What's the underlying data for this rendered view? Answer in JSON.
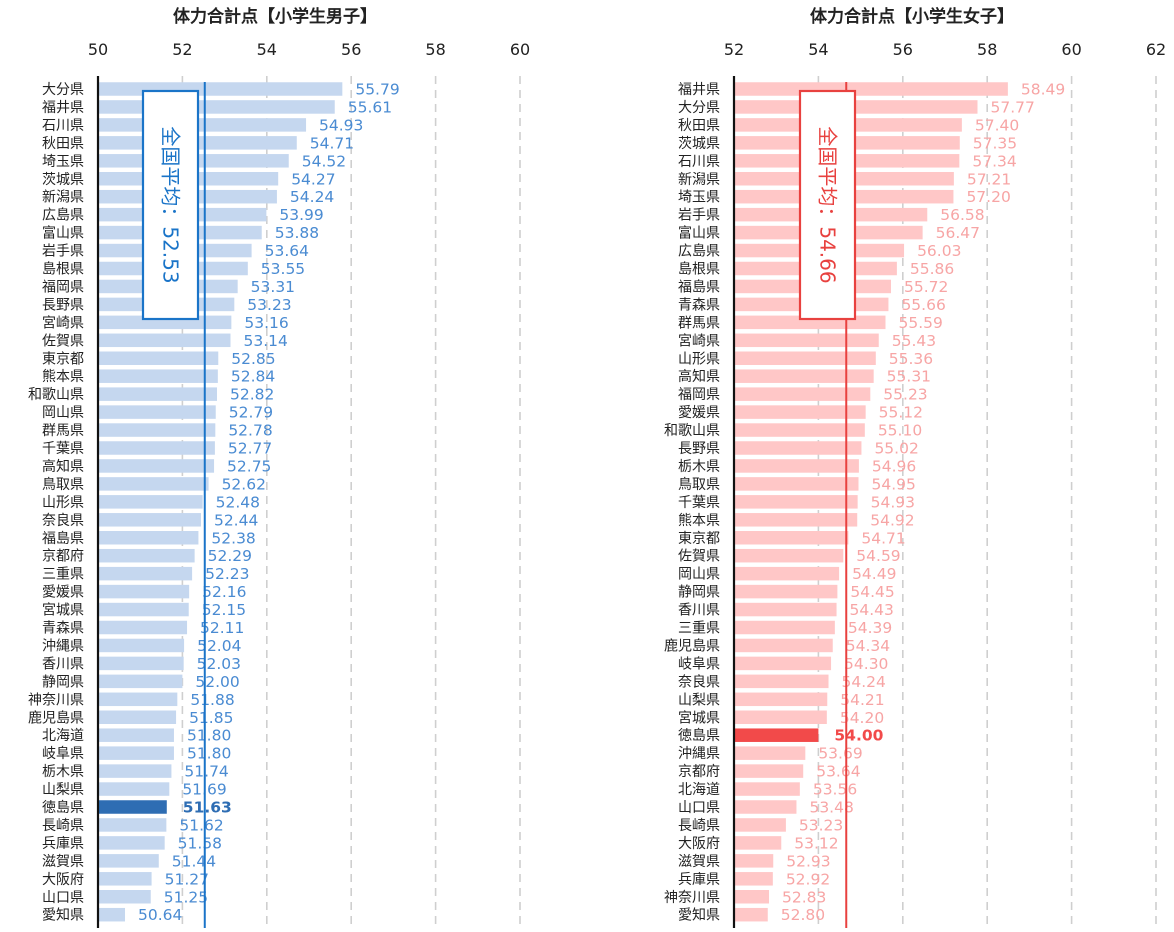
{
  "charts": [
    {
      "type": "bar",
      "orientation": "horizontal",
      "title": "体力合計点【小学生男子】",
      "xlim": [
        50,
        60
      ],
      "xticks": [
        50,
        52,
        54,
        56,
        58,
        60
      ],
      "tick_labels": [
        "50",
        "52",
        "54",
        "56",
        "58",
        "60"
      ],
      "grid": "vertical dashed",
      "bar_color": "#c5d7ef",
      "highlight_color": "#2e6db3",
      "label_color": "#4a8bd2",
      "average_color": "#1a74c8",
      "average": {
        "label": "全国平均：52.53",
        "value": 52.53
      },
      "highlight_category": "徳島県",
      "categories": [
        "大分県",
        "福井県",
        "石川県",
        "秋田県",
        "埼玉県",
        "茨城県",
        "新潟県",
        "広島県",
        "富山県",
        "岩手県",
        "島根県",
        "福岡県",
        "長野県",
        "宮崎県",
        "佐賀県",
        "東京都",
        "熊本県",
        "和歌山県",
        "岡山県",
        "群馬県",
        "千葉県",
        "高知県",
        "鳥取県",
        "山形県",
        "奈良県",
        "福島県",
        "京都府",
        "三重県",
        "愛媛県",
        "宮城県",
        "青森県",
        "沖縄県",
        "香川県",
        "静岡県",
        "神奈川県",
        "鹿児島県",
        "北海道",
        "岐阜県",
        "栃木県",
        "山梨県",
        "徳島県",
        "長崎県",
        "兵庫県",
        "滋賀県",
        "大阪府",
        "山口県",
        "愛知県"
      ],
      "values": [
        55.79,
        55.61,
        54.93,
        54.71,
        54.52,
        54.27,
        54.24,
        53.99,
        53.88,
        53.64,
        53.55,
        53.31,
        53.23,
        53.16,
        53.14,
        52.85,
        52.84,
        52.82,
        52.79,
        52.78,
        52.77,
        52.75,
        52.62,
        52.48,
        52.44,
        52.38,
        52.29,
        52.23,
        52.16,
        52.15,
        52.11,
        52.04,
        52.03,
        52.0,
        51.88,
        51.85,
        51.8,
        51.8,
        51.74,
        51.69,
        51.63,
        51.62,
        51.58,
        51.44,
        51.27,
        51.25,
        50.64
      ],
      "value_labels": [
        "55.79",
        "55.61",
        "54.93",
        "54.71",
        "54.52",
        "54.27",
        "54.24",
        "53.99",
        "53.88",
        "53.64",
        "53.55",
        "53.31",
        "53.23",
        "53.16",
        "53.14",
        "52.85",
        "52.84",
        "52.82",
        "52.79",
        "52.78",
        "52.77",
        "52.75",
        "52.62",
        "52.48",
        "52.44",
        "52.38",
        "52.29",
        "52.23",
        "52.16",
        "52.15",
        "52.11",
        "52.04",
        "52.03",
        "52.00",
        "51.88",
        "51.85",
        "51.80",
        "51.80",
        "51.74",
        "51.69",
        "51.63",
        "51.62",
        "51.58",
        "51.44",
        "51.27",
        "51.25",
        "50.64"
      ]
    },
    {
      "type": "bar",
      "orientation": "horizontal",
      "title": "体力合計点【小学生女子】",
      "xlim": [
        52,
        62
      ],
      "xticks": [
        52,
        54,
        56,
        58,
        60,
        62
      ],
      "tick_labels": [
        "52",
        "54",
        "56",
        "58",
        "60",
        "62"
      ],
      "grid": "vertical dashed",
      "bar_color": "#ffc7c7",
      "highlight_color": "#f24a4a",
      "label_color": "#f7a5a5",
      "average_color": "#e8413f",
      "average": {
        "label": "全国平均：54.66",
        "value": 54.66
      },
      "highlight_category": "徳島県",
      "categories": [
        "福井県",
        "大分県",
        "秋田県",
        "茨城県",
        "石川県",
        "新潟県",
        "埼玉県",
        "岩手県",
        "富山県",
        "広島県",
        "島根県",
        "福島県",
        "青森県",
        "群馬県",
        "宮崎県",
        "山形県",
        "高知県",
        "福岡県",
        "愛媛県",
        "和歌山県",
        "長野県",
        "栃木県",
        "鳥取県",
        "千葉県",
        "熊本県",
        "東京都",
        "佐賀県",
        "岡山県",
        "静岡県",
        "香川県",
        "三重県",
        "鹿児島県",
        "岐阜県",
        "奈良県",
        "山梨県",
        "宮城県",
        "徳島県",
        "沖縄県",
        "京都府",
        "北海道",
        "山口県",
        "長崎県",
        "大阪府",
        "滋賀県",
        "兵庫県",
        "神奈川県",
        "愛知県"
      ],
      "values": [
        58.49,
        57.77,
        57.4,
        57.35,
        57.34,
        57.21,
        57.2,
        56.58,
        56.47,
        56.03,
        55.86,
        55.72,
        55.66,
        55.59,
        55.43,
        55.36,
        55.31,
        55.23,
        55.12,
        55.1,
        55.02,
        54.96,
        54.95,
        54.93,
        54.92,
        54.71,
        54.59,
        54.49,
        54.45,
        54.43,
        54.39,
        54.34,
        54.3,
        54.24,
        54.21,
        54.2,
        54.0,
        53.69,
        53.64,
        53.56,
        53.48,
        53.23,
        53.12,
        52.93,
        52.92,
        52.83,
        52.8
      ],
      "value_labels": [
        "58.49",
        "57.77",
        "57.40",
        "57.35",
        "57.34",
        "57.21",
        "57.20",
        "56.58",
        "56.47",
        "56.03",
        "55.86",
        "55.72",
        "55.66",
        "55.59",
        "55.43",
        "55.36",
        "55.31",
        "55.23",
        "55.12",
        "55.10",
        "55.02",
        "54.96",
        "54.95",
        "54.93",
        "54.92",
        "54.71",
        "54.59",
        "54.49",
        "54.45",
        "54.43",
        "54.39",
        "54.34",
        "54.30",
        "54.24",
        "54.21",
        "54.20",
        "54.00",
        "53.69",
        "53.64",
        "53.56",
        "53.48",
        "53.23",
        "53.12",
        "52.93",
        "52.92",
        "52.83",
        "52.80"
      ]
    }
  ]
}
